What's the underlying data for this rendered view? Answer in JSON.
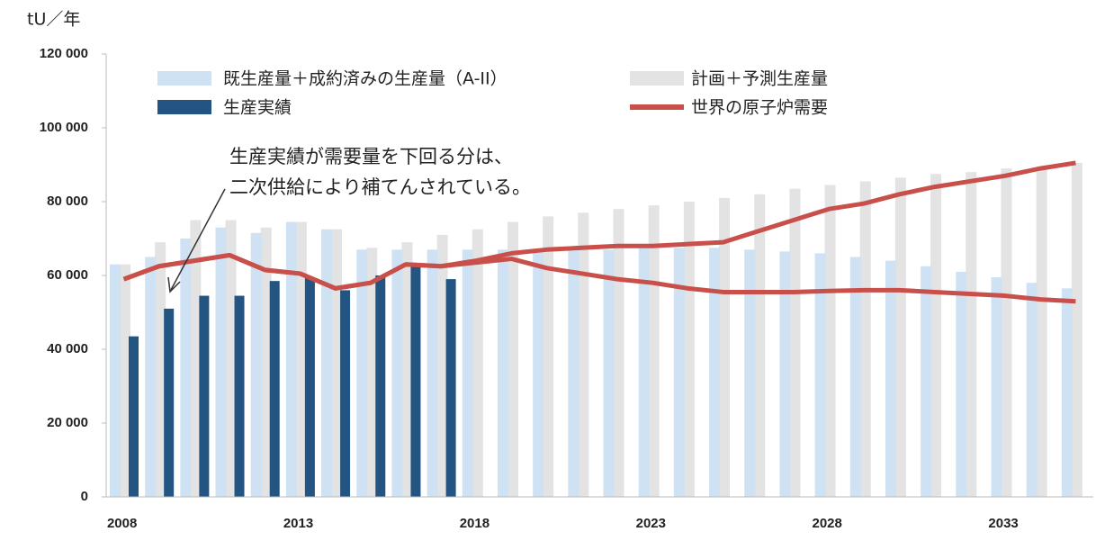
{
  "chart_data": {
    "type": "bar",
    "y_label": "tU／年",
    "annotation": [
      "生産実績が需要量を下回る分は、",
      "二次供給により補てんされている。"
    ],
    "categories": [
      "2008",
      null,
      null,
      null,
      null,
      "2013",
      null,
      null,
      null,
      null,
      "2018",
      null,
      null,
      null,
      null,
      "2023",
      null,
      null,
      null,
      null,
      "2028",
      null,
      null,
      null,
      null,
      "2033",
      null,
      null
    ],
    "series": [
      {
        "name": "既生産量＋成約済みの生産量（A-II）",
        "color": "#cfe2f3",
        "values": [
          63000,
          65000,
          70000,
          73000,
          71500,
          74500,
          72500,
          67000,
          67000,
          67000,
          67000,
          67000,
          67000,
          67000,
          67000,
          67500,
          67500,
          67500,
          67000,
          66500,
          66000,
          65000,
          64000,
          62500,
          61000,
          59500,
          58000,
          56500
        ]
      },
      {
        "name": "計画＋予測生産量",
        "color": "#e3e3e3",
        "values": [
          63000,
          69000,
          75000,
          75000,
          73000,
          74500,
          72500,
          67500,
          69000,
          71000,
          72500,
          74500,
          76000,
          77000,
          78000,
          79000,
          80000,
          81000,
          82000,
          83500,
          84500,
          85500,
          86500,
          87500,
          88000,
          89000,
          89500,
          90500
        ]
      },
      {
        "name": "生産実績",
        "color": "#245582",
        "values": [
          43500,
          51000,
          54500,
          54500,
          58500,
          59500,
          56000,
          60000,
          62500,
          59000,
          null,
          null,
          null,
          null,
          null,
          null,
          null,
          null,
          null,
          null,
          null,
          null,
          null,
          null,
          null,
          null,
          null,
          null
        ]
      },
      {
        "name": "世界の原子炉需要",
        "color": "#c9504a",
        "values": [
          59000,
          62500,
          64000,
          65500,
          61500,
          60500,
          56500,
          58000,
          63000,
          62500,
          64000,
          66000,
          67000,
          67500,
          68000,
          68000,
          68500,
          69000,
          72000,
          75000,
          78000,
          79500,
          82000,
          84000,
          85500,
          87000,
          89000,
          90500
        ],
        "values_low": [
          59000,
          62500,
          64000,
          65500,
          61500,
          60500,
          56500,
          58000,
          63000,
          62500,
          63500,
          64500,
          62000,
          60500,
          59000,
          58000,
          56500,
          55500,
          55500,
          55500,
          55800,
          56000,
          56000,
          55500,
          55000,
          54500,
          53500,
          53000
        ]
      }
    ],
    "ylim": [
      0,
      120000
    ],
    "yticks": [
      0,
      {
        "value": 20000,
        "label": "20 000"
      },
      {
        "value": 40000,
        "label": "40 000"
      },
      {
        "value": 60000,
        "label": "60 000"
      },
      {
        "value": 80000,
        "label": "80 000"
      },
      {
        "value": 100000,
        "label": "100 000"
      },
      {
        "value": 120000,
        "label": "120 000"
      }
    ]
  }
}
